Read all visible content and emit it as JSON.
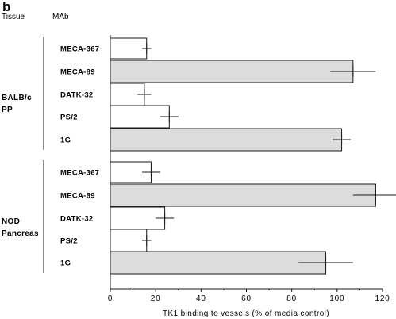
{
  "chart_data": {
    "type": "bar",
    "orientation": "horizontal",
    "panel_label": "b",
    "column_headers": {
      "tissue": "Tissue",
      "mab": "MAb"
    },
    "xlabel": "TK1 binding to vessels (% of media control)",
    "xlim": [
      0,
      120
    ],
    "xticks": [
      0,
      20,
      40,
      60,
      80,
      100,
      120
    ],
    "xtick_labels": [
      "0",
      "20",
      "40",
      "60",
      "80",
      "100",
      "120"
    ],
    "colors": {
      "bar_fill": "#dcdcdc",
      "bar_low_fill": "#ffffff",
      "stroke": "#1a1a1a"
    },
    "groups": [
      {
        "name_lines": [
          "BALB/c",
          "PP"
        ],
        "bars": [
          {
            "label": "MECA-367",
            "value": 16,
            "error": 2
          },
          {
            "label": "MECA-89",
            "value": 107,
            "error": 10
          },
          {
            "label": "DATK-32",
            "value": 15,
            "error": 3
          },
          {
            "label": "PS/2",
            "value": 26,
            "error": 4
          },
          {
            "label": "1G",
            "value": 102,
            "error": 4
          }
        ]
      },
      {
        "name_lines": [
          "NOD",
          "Pancreas"
        ],
        "bars": [
          {
            "label": "MECA-367",
            "value": 18,
            "error": 4
          },
          {
            "label": "MECA-89",
            "value": 117,
            "error": 10
          },
          {
            "label": "DATK-32",
            "value": 24,
            "error": 4
          },
          {
            "label": "PS/2",
            "value": 16,
            "error": 2
          },
          {
            "label": "1G",
            "value": 95,
            "error": 12
          }
        ]
      }
    ]
  }
}
